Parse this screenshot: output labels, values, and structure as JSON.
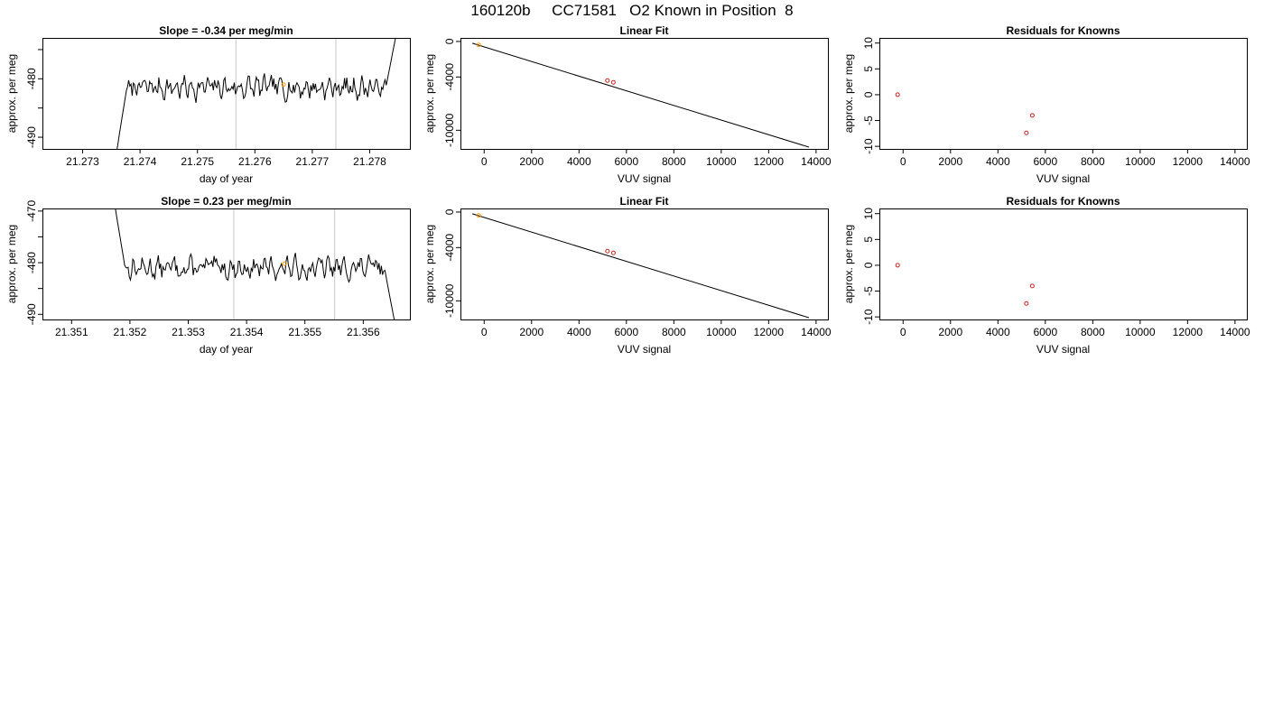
{
  "page_title": "160120b     CC71581   O2 Known in Position  8",
  "colors": {
    "line": "#000000",
    "guide_vertical": "#c8c8c8",
    "known_marker": "#cc2222",
    "highlight_marker": "#ff9900",
    "frame": "#000000"
  },
  "chart_data": [
    {
      "type": "line",
      "title": "Slope =  -0.34  per meg/min",
      "xlabel": "day of year",
      "ylabel": "approx. per meg",
      "xlim": [
        21.2723,
        21.2787
      ],
      "ylim": [
        -492.0,
        -473.0
      ],
      "xticks": [
        21.273,
        21.274,
        21.275,
        21.276,
        21.277,
        21.278
      ],
      "xtick_labels": [
        "21.273",
        "21.274",
        "21.275",
        "21.276",
        "21.277",
        "21.278"
      ],
      "yticks": [
        -490,
        -485,
        -480,
        -475
      ],
      "ytick_labels": [
        "-490",
        "",
        "-480",
        ""
      ],
      "vlines": [
        21.27567,
        21.27741
      ],
      "highlight_point": {
        "x": 21.2765,
        "y": -481.0
      },
      "series": [
        {
          "x_start": 21.2736,
          "x_end": 21.27845,
          "y_start": -492.0,
          "y_end": -473.0,
          "plateau": -481.5,
          "noise_amp": 1.4,
          "seed": 7
        }
      ]
    },
    {
      "type": "scatter",
      "title": "Linear Fit",
      "xlabel": "VUV signal",
      "ylabel": "approx. per meg",
      "xlim": [
        -1000,
        14500
      ],
      "ylim": [
        -12100,
        400
      ],
      "xticks": [
        0,
        2000,
        4000,
        6000,
        8000,
        10000,
        12000,
        14000
      ],
      "xtick_labels": [
        "0",
        "2000",
        "4000",
        "6000",
        "8000",
        "10000",
        "12000",
        "14000"
      ],
      "yticks": [
        0,
        -4000,
        -10000
      ],
      "ytick_labels": [
        "0",
        "-4000",
        "-10000"
      ],
      "fit_line": {
        "x": [
          -500,
          13700
        ],
        "y": [
          -200,
          -11900
        ]
      },
      "points": [
        {
          "x": 5200,
          "y": -4400
        },
        {
          "x": 5450,
          "y": -4600
        }
      ],
      "highlight_point": {
        "x": -230,
        "y": -390
      }
    },
    {
      "type": "scatter",
      "title": "Residuals for Knowns",
      "xlabel": "VUV signal",
      "ylabel": "approx. per meg",
      "xlim": [
        -1000,
        14500
      ],
      "ylim": [
        -10.5,
        11
      ],
      "xticks": [
        0,
        2000,
        4000,
        6000,
        8000,
        10000,
        12000,
        14000
      ],
      "xtick_labels": [
        "0",
        "2000",
        "4000",
        "6000",
        "8000",
        "10000",
        "12000",
        "14000"
      ],
      "yticks": [
        10,
        5,
        0,
        -5,
        -10
      ],
      "ytick_labels": [
        "10",
        "5",
        "0",
        "-5",
        "-10"
      ],
      "points": [
        {
          "x": -230,
          "y": 0.0
        },
        {
          "x": 5200,
          "y": -7.4
        },
        {
          "x": 5450,
          "y": -4.0
        }
      ]
    },
    {
      "type": "line",
      "title": "Slope =  0.23  per meg/min",
      "xlabel": "day of year",
      "ylabel": "approx. per meg",
      "xlim": [
        21.3505,
        21.3568
      ],
      "ylim": [
        -491.0,
        -469.5
      ],
      "xticks": [
        21.351,
        21.352,
        21.353,
        21.354,
        21.355,
        21.356
      ],
      "xtick_labels": [
        "21.351",
        "21.352",
        "21.353",
        "21.354",
        "21.355",
        "21.356"
      ],
      "yticks": [
        -490,
        -485,
        -480,
        -475,
        -470
      ],
      "ytick_labels": [
        "-490",
        "",
        "-480",
        "",
        "-470"
      ],
      "vlines": [
        21.35378,
        21.35551
      ],
      "highlight_point": {
        "x": 21.35465,
        "y": -480.2
      },
      "series": [
        {
          "x_start": 21.35175,
          "x_end": 21.35653,
          "y_start": -469.5,
          "y_end": -491.0,
          "plateau": -481.0,
          "noise_amp": 1.5,
          "seed": 13
        }
      ]
    },
    {
      "type": "scatter",
      "title": "Linear Fit",
      "xlabel": "VUV signal",
      "ylabel": "approx. per meg",
      "xlim": [
        -1000,
        14500
      ],
      "ylim": [
        -12100,
        400
      ],
      "xticks": [
        0,
        2000,
        4000,
        6000,
        8000,
        10000,
        12000,
        14000
      ],
      "xtick_labels": [
        "0",
        "2000",
        "4000",
        "6000",
        "8000",
        "10000",
        "12000",
        "14000"
      ],
      "yticks": [
        0,
        -4000,
        -10000
      ],
      "ytick_labels": [
        "0",
        "-4000",
        "-10000"
      ],
      "fit_line": {
        "x": [
          -500,
          13700
        ],
        "y": [
          -200,
          -11900
        ]
      },
      "points": [
        {
          "x": 5200,
          "y": -4400
        },
        {
          "x": 5450,
          "y": -4600
        }
      ],
      "highlight_point": {
        "x": -230,
        "y": -390
      }
    },
    {
      "type": "scatter",
      "title": "Residuals for Knowns",
      "xlabel": "VUV signal",
      "ylabel": "approx. per meg",
      "xlim": [
        -1000,
        14500
      ],
      "ylim": [
        -10.5,
        11
      ],
      "xticks": [
        0,
        2000,
        4000,
        6000,
        8000,
        10000,
        12000,
        14000
      ],
      "xtick_labels": [
        "0",
        "2000",
        "4000",
        "6000",
        "8000",
        "10000",
        "12000",
        "14000"
      ],
      "yticks": [
        10,
        5,
        0,
        -5,
        -10
      ],
      "ytick_labels": [
        "10",
        "5",
        "0",
        "-5",
        "-10"
      ],
      "points": [
        {
          "x": -230,
          "y": 0.0
        },
        {
          "x": 5200,
          "y": -7.4
        },
        {
          "x": 5450,
          "y": -4.0
        }
      ]
    }
  ]
}
